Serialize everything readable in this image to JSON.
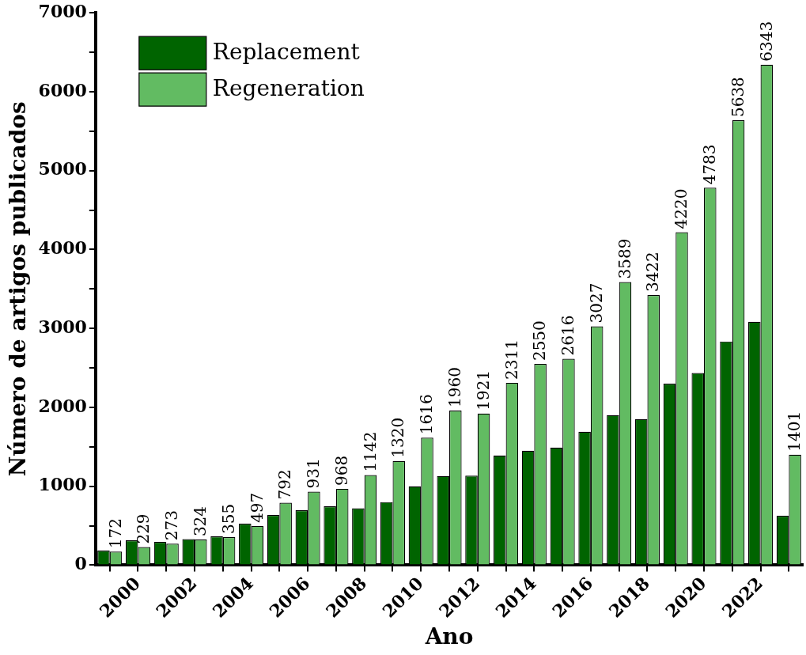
{
  "chart_data": {
    "type": "bar",
    "xlabel": "Ano",
    "ylabel": "Número de artigos publicados",
    "categories": [
      null,
      "2000",
      null,
      "2002",
      null,
      "2004",
      null,
      "2006",
      null,
      "2008",
      null,
      "2010",
      null,
      "2012",
      null,
      "2014",
      null,
      "2016",
      null,
      "2018",
      null,
      "2020",
      null,
      "2022",
      null
    ],
    "series": [
      {
        "name": "Replacement",
        "color": "#006400",
        "values": [
          185,
          315,
          295,
          330,
          365,
          525,
          635,
          695,
          745,
          720,
          800,
          1000,
          1130,
          1135,
          1390,
          1450,
          1490,
          1690,
          1900,
          1850,
          2300,
          2435,
          2835,
          3085,
          625
        ]
      },
      {
        "name": "Regeneration",
        "color": "#62bb62",
        "values": [
          172,
          229,
          273,
          324,
          355,
          497,
          792,
          931,
          968,
          1142,
          1320,
          1616,
          1960,
          1921,
          2311,
          2550,
          2616,
          3027,
          3589,
          3422,
          4220,
          4783,
          5638,
          6343,
          1401
        ],
        "value_labels": [
          "172",
          "229",
          "273",
          "324",
          "355",
          "497",
          "792",
          "931",
          "968",
          "1142",
          "1320",
          "1616",
          "1960",
          "1921",
          "2311",
          "2550",
          "2616",
          "3027",
          "3589",
          "3422",
          "4220",
          "4783",
          "5638",
          "6343",
          "1401"
        ]
      }
    ],
    "ylim": [
      0,
      7000
    ],
    "yticks": [
      0,
      {
        "value": 500,
        "label": null
      },
      1000,
      {
        "value": 1500,
        "label": null
      },
      2000,
      {
        "value": 2500,
        "label": null
      },
      3000,
      {
        "value": 3500,
        "label": null
      },
      4000,
      {
        "value": 4500,
        "label": null
      },
      5000,
      {
        "value": 5500,
        "label": null
      },
      6000,
      {
        "value": 6500,
        "label": null
      },
      7000
    ],
    "grid": false,
    "legend": "top left"
  }
}
